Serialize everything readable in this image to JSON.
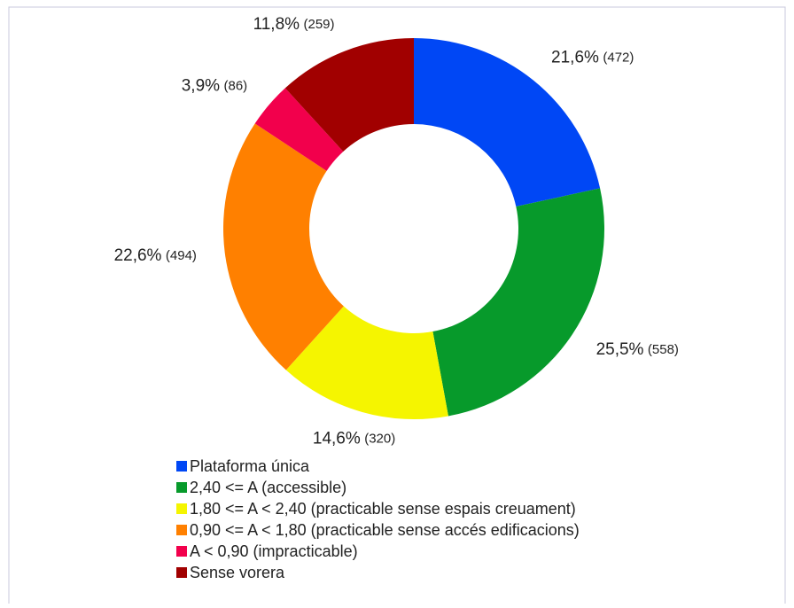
{
  "chart_data": {
    "type": "donut",
    "categories": [
      "Plataforma única",
      "2,40 <= A (accessible)",
      "1,80 <= A < 2,40 (practicable sense espais creuament)",
      "0,90 <= A < 1,80 (practicable sense accés edificacions)",
      "A < 0,90 (impracticable)",
      "Sense vorera"
    ],
    "values": [
      21.6,
      25.5,
      14.6,
      22.6,
      3.9,
      11.8
    ],
    "value_labels": [
      "21,6%",
      "25,5%",
      "14,6%",
      "22,6%",
      "3,9%",
      "11,8%"
    ],
    "counts": [
      472,
      558,
      320,
      494,
      86,
      259
    ],
    "count_labels": [
      "(472)",
      "(558)",
      "(320)",
      "(494)",
      "(86)",
      "(259)"
    ],
    "colors": [
      "#0047f5",
      "#079a2b",
      "#f5f500",
      "#ff8000",
      "#f2004c",
      "#a10000"
    ],
    "legend": "bottom"
  }
}
